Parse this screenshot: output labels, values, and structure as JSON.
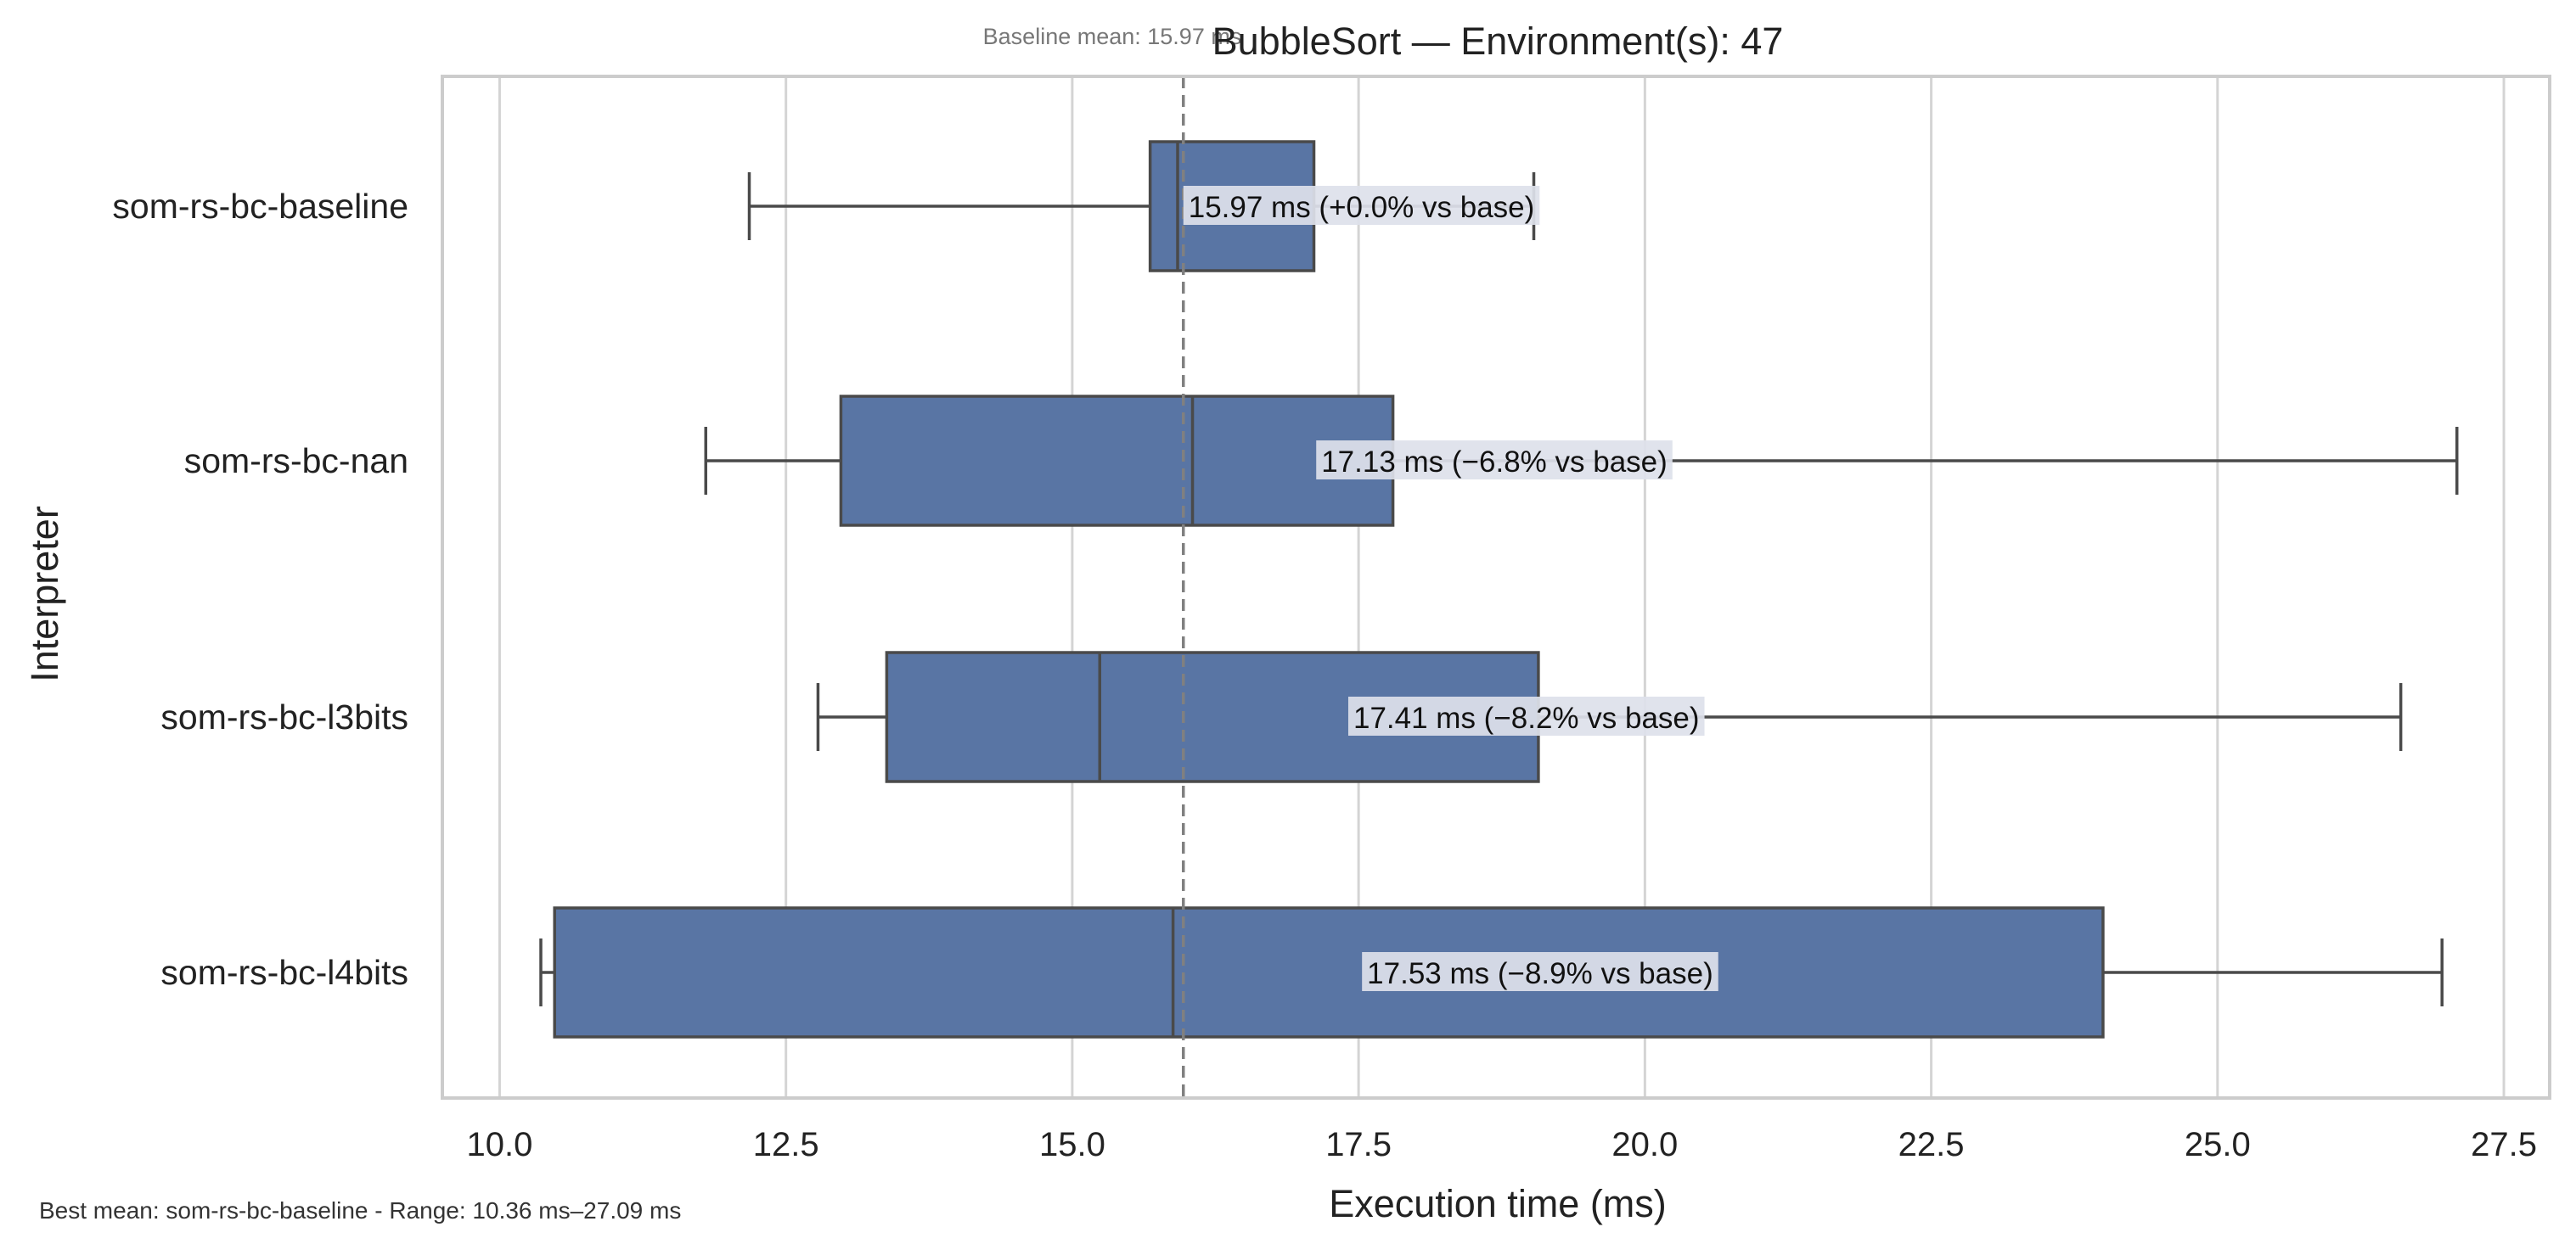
{
  "chart_data": {
    "type": "box",
    "orientation": "horizontal",
    "title": "BubbleSort — Environment(s): 47",
    "subtitle": "Baseline mean: 15.97 ms",
    "xlabel": "Execution time (ms)",
    "ylabel": "Interpreter",
    "xlim": [
      9.5,
      27.9
    ],
    "xticks": [
      10.0,
      12.5,
      15.0,
      17.5,
      20.0,
      22.5,
      25.0,
      27.5
    ],
    "xtick_labels": [
      "10.0",
      "12.5",
      "15.0",
      "17.5",
      "20.0",
      "22.5",
      "25.0",
      "27.5"
    ],
    "grid": "vertical",
    "baseline_mean": 15.97,
    "footer": "Best mean: som-rs-bc-baseline - Range: 10.36 ms–27.09 ms",
    "colors": {
      "box_fill": "#5975a4",
      "box_edge": "#4a4a4a",
      "grid": "#d4d4d4",
      "baseline_line": "#808080",
      "label_bg": "#dde1ea"
    },
    "categories": [
      "som-rs-bc-baseline",
      "som-rs-bc-nan",
      "som-rs-bc-l3bits",
      "som-rs-bc-l4bits"
    ],
    "boxes": [
      {
        "name": "som-rs-bc-baseline",
        "whisker_low": 12.18,
        "q1": 15.68,
        "median": 15.92,
        "q3": 17.11,
        "whisker_high": 19.03,
        "mean": 15.97,
        "label": "15.97 ms  (+0.0% vs base)"
      },
      {
        "name": "som-rs-bc-nan",
        "whisker_low": 11.8,
        "q1": 12.98,
        "median": 16.05,
        "q3": 17.8,
        "whisker_high": 27.09,
        "mean": 17.13,
        "label": "17.13 ms  (−6.8% vs base)"
      },
      {
        "name": "som-rs-bc-l3bits",
        "whisker_low": 12.78,
        "q1": 13.38,
        "median": 15.24,
        "q3": 19.07,
        "whisker_high": 26.6,
        "mean": 17.41,
        "label": "17.41 ms  (−8.2% vs base)"
      },
      {
        "name": "som-rs-bc-l4bits",
        "whisker_low": 10.36,
        "q1": 10.48,
        "median": 15.88,
        "q3": 24.0,
        "whisker_high": 26.96,
        "mean": 17.53,
        "label": "17.53 ms  (−8.9% vs base)"
      }
    ]
  }
}
